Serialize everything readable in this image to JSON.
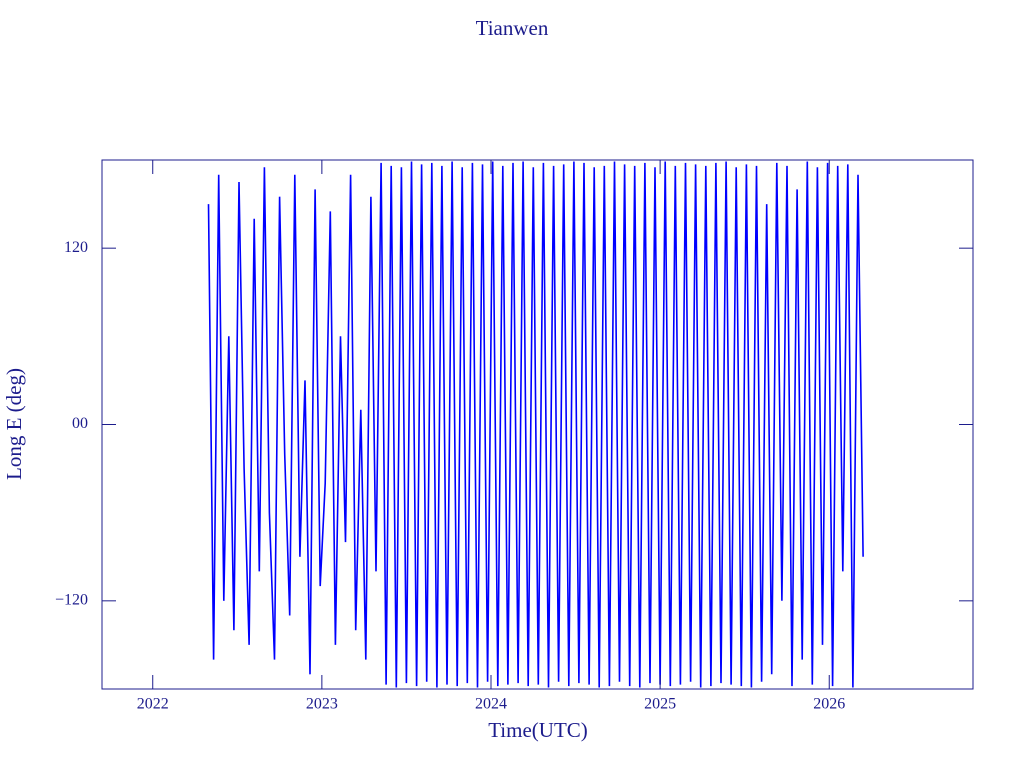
{
  "chart_data": {
    "type": "line",
    "title": "Tianwen",
    "x_label": "Time(UTC)",
    "y_label": "Long E (deg)",
    "x": [
      2022.33,
      2022.36,
      2022.39,
      2022.42,
      2022.45,
      2022.48,
      2022.51,
      2022.54,
      2022.57,
      2022.6,
      2022.63,
      2022.66,
      2022.69,
      2022.72,
      2022.75,
      2022.78,
      2022.81,
      2022.84,
      2022.87,
      2022.9,
      2022.93,
      2022.96,
      2022.99,
      2023.02,
      2023.05,
      2023.08,
      2023.11,
      2023.14,
      2023.17,
      2023.2,
      2023.23,
      2023.26,
      2023.29,
      2023.32,
      2023.35,
      2023.38,
      2023.41,
      2023.44,
      2023.47,
      2023.5,
      2023.53,
      2023.56,
      2023.59,
      2023.62,
      2023.65,
      2023.68,
      2023.71,
      2023.74,
      2023.77,
      2023.8,
      2023.83,
      2023.86,
      2023.89,
      2023.92,
      2023.95,
      2023.98,
      2024.01,
      2024.04,
      2024.07,
      2024.1,
      2024.13,
      2024.16,
      2024.19,
      2024.22,
      2024.25,
      2024.28,
      2024.31,
      2024.34,
      2024.37,
      2024.4,
      2024.43,
      2024.46,
      2024.49,
      2024.52,
      2024.55,
      2024.58,
      2024.61,
      2024.64,
      2024.67,
      2024.7,
      2024.73,
      2024.76,
      2024.79,
      2024.82,
      2024.85,
      2024.88,
      2024.91,
      2024.94,
      2024.97,
      2025.0,
      2025.03,
      2025.06,
      2025.09,
      2025.12,
      2025.15,
      2025.18,
      2025.21,
      2025.24,
      2025.27,
      2025.3,
      2025.33,
      2025.36,
      2025.39,
      2025.42,
      2025.45,
      2025.48,
      2025.51,
      2025.54,
      2025.57,
      2025.6,
      2025.63,
      2025.66,
      2025.69,
      2025.72,
      2025.75,
      2025.78,
      2025.81,
      2025.84,
      2025.87,
      2025.9,
      2025.93,
      2025.96,
      2025.99,
      2026.02,
      2026.05,
      2026.08,
      2026.11,
      2026.14,
      2026.17,
      2026.2
    ],
    "values": [
      150,
      -160,
      170,
      -120,
      60,
      -140,
      165,
      -30,
      -150,
      140,
      -100,
      175,
      -60,
      -160,
      155,
      -20,
      -130,
      170,
      -90,
      30,
      -170,
      160,
      -110,
      -40,
      145,
      -150,
      60,
      -80,
      170,
      -140,
      10,
      -160,
      155,
      -100,
      178,
      -177,
      176,
      -179,
      175,
      -176,
      179,
      -178,
      177,
      -175,
      178,
      -179,
      176,
      -177,
      179,
      -178,
      175,
      -176,
      178,
      -179,
      177,
      -175,
      179,
      -178,
      176,
      -177,
      178,
      -176,
      179,
      -178,
      175,
      -177,
      178,
      -179,
      176,
      -175,
      177,
      -178,
      179,
      -176,
      178,
      -177,
      175,
      -179,
      176,
      -178,
      179,
      -175,
      177,
      -178,
      176,
      -179,
      178,
      -176,
      175,
      -177,
      179,
      -178,
      176,
      -177,
      178,
      -175,
      177,
      -179,
      176,
      -178,
      178,
      -176,
      179,
      -177,
      175,
      -178,
      177,
      -179,
      176,
      -175,
      150,
      -170,
      178,
      -120,
      176,
      -178,
      160,
      -160,
      179,
      -177,
      175,
      -150,
      178,
      -178,
      176,
      -100,
      177,
      -179,
      170,
      -90
    ],
    "color": "#0000ff",
    "xlim": [
      2021.7,
      2026.85
    ],
    "xticks": [
      2022,
      2023,
      2024,
      2025,
      2026
    ],
    "ylim": [
      -180,
      180
    ],
    "yticks": [
      {
        "value": -120,
        "label": "−120"
      },
      {
        "value": 0,
        "label": "00"
      },
      120
    ]
  }
}
